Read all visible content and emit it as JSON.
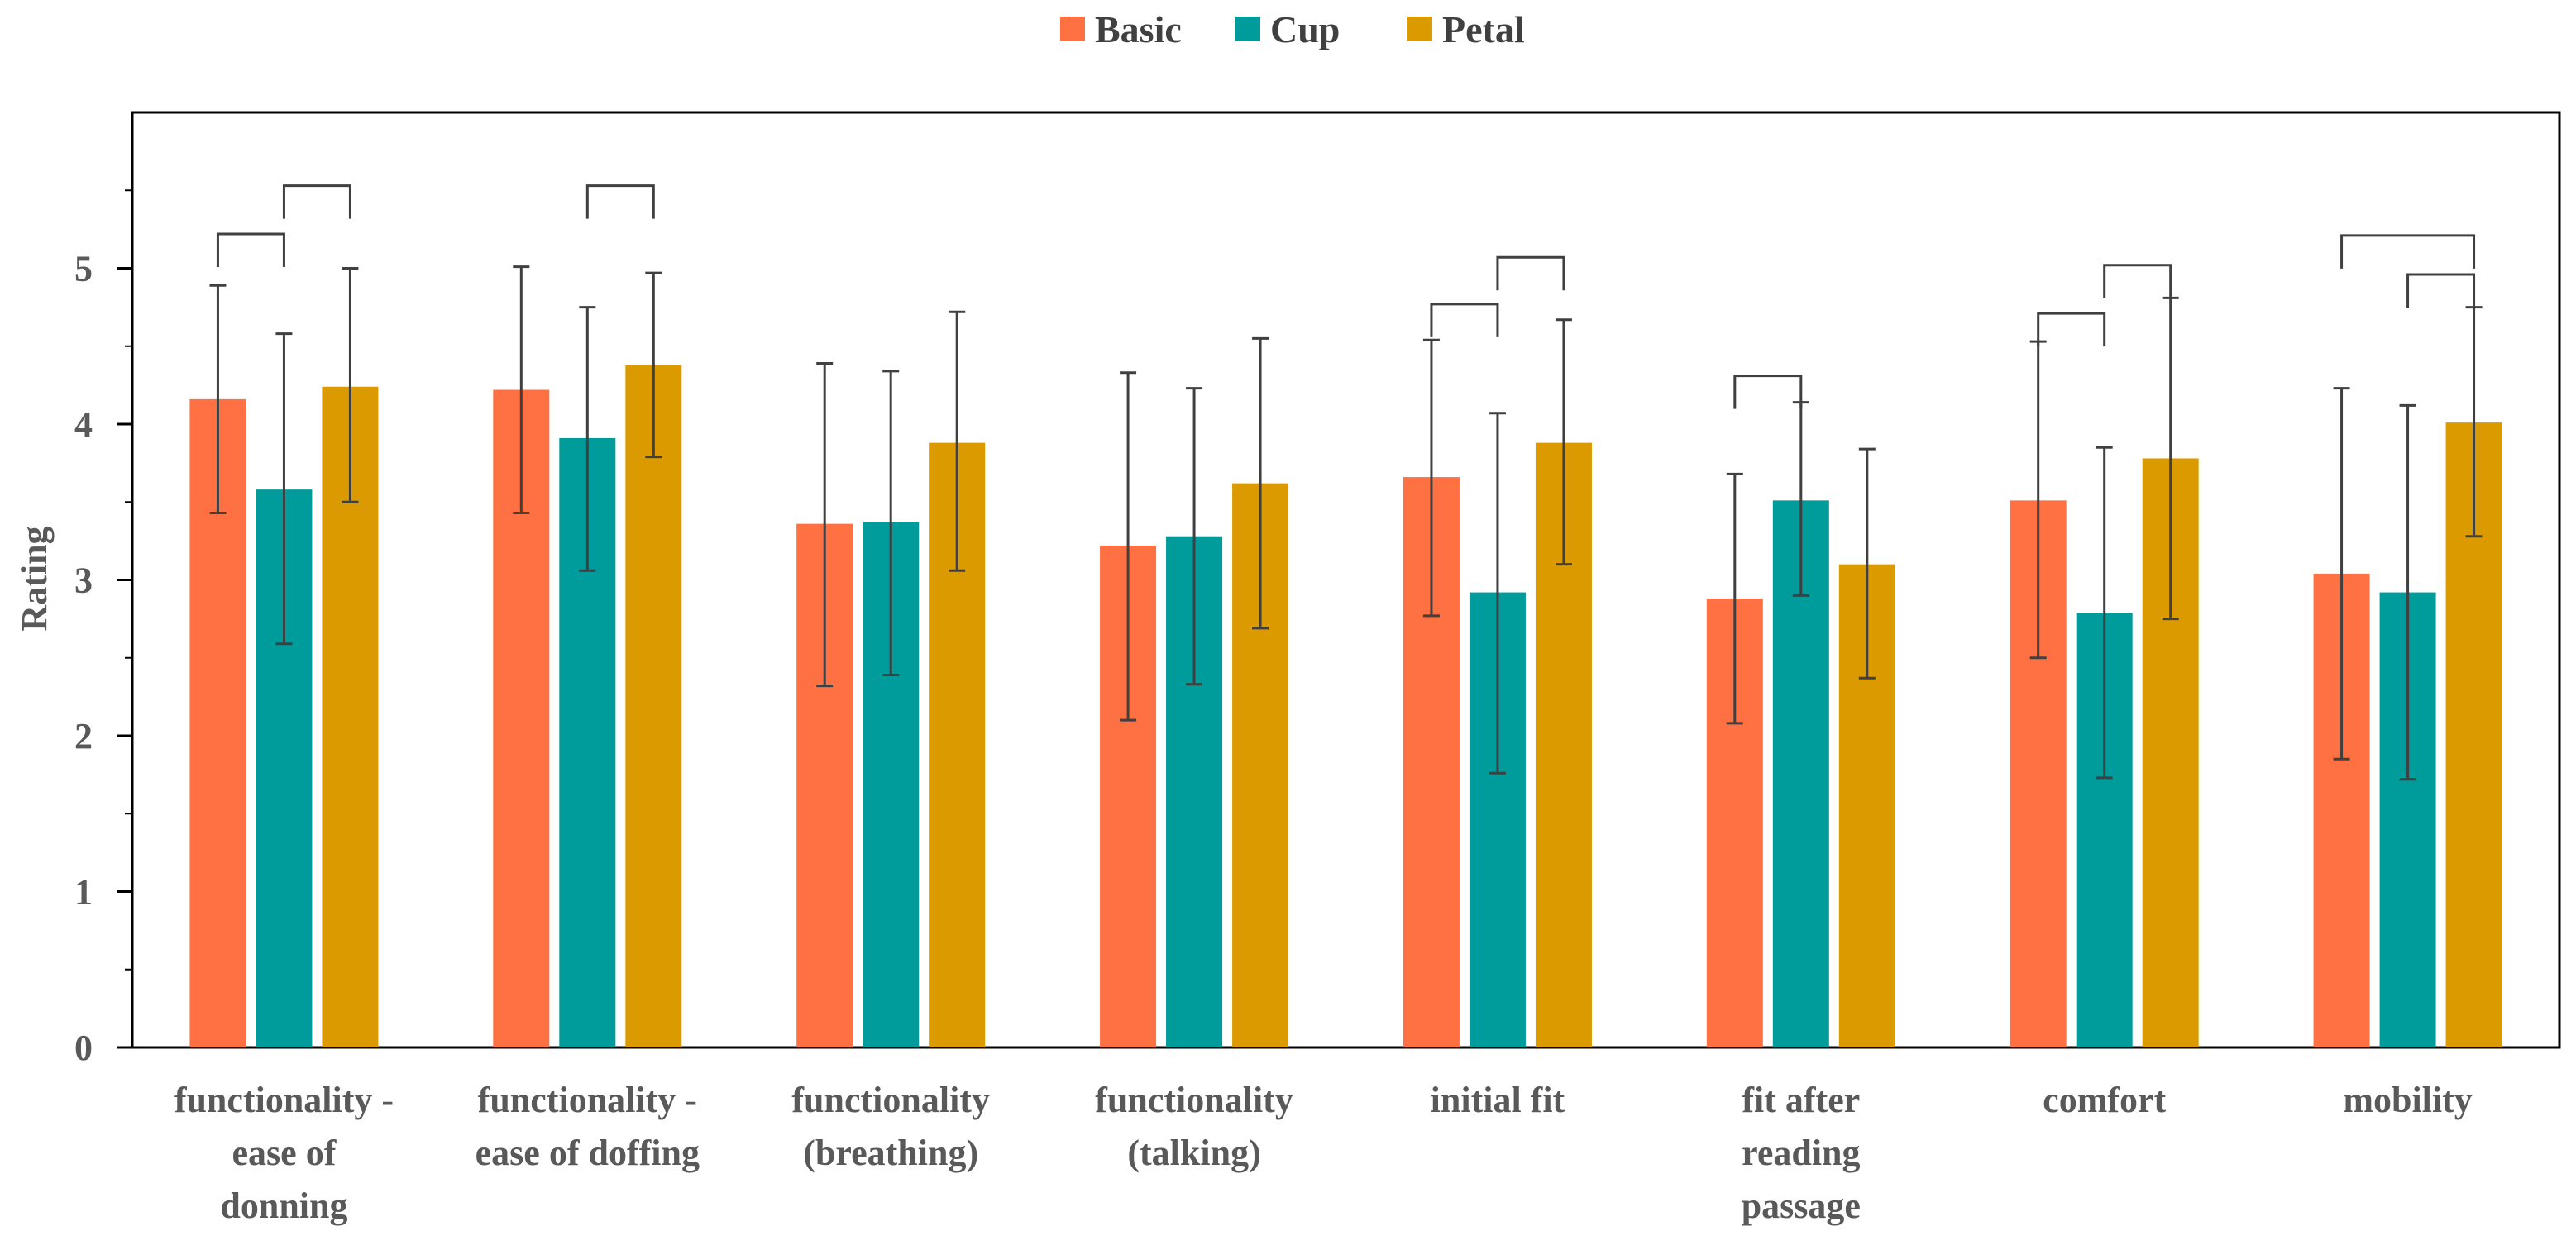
{
  "chart_data": {
    "type": "bar",
    "title": "",
    "xlabel": "",
    "ylabel": "Rating",
    "ylim": [
      0,
      6
    ],
    "yticks": [
      0,
      1,
      2,
      3,
      4,
      5
    ],
    "grid": false,
    "legend_position": "top-center",
    "categories": [
      [
        "functionality -",
        "ease of",
        "donning"
      ],
      [
        "functionality -",
        "ease of doffing"
      ],
      [
        "functionality",
        "(breathing)"
      ],
      [
        "functionality",
        "(talking)"
      ],
      [
        "initial fit"
      ],
      [
        "fit after",
        "reading",
        "passage"
      ],
      [
        "comfort"
      ],
      [
        "mobility"
      ]
    ],
    "series": [
      {
        "name": "Basic",
        "color": "#FF7043",
        "values": [
          4.16,
          4.22,
          3.36,
          3.22,
          3.66,
          2.88,
          3.51,
          3.04
        ],
        "err_low": [
          3.43,
          3.43,
          2.32,
          2.1,
          2.77,
          2.08,
          2.5,
          1.85
        ],
        "err_high": [
          4.89,
          5.01,
          4.39,
          4.33,
          4.54,
          3.68,
          4.53,
          4.23
        ]
      },
      {
        "name": "Cup",
        "color": "#009B9B",
        "values": [
          3.58,
          3.91,
          3.37,
          3.28,
          2.92,
          3.51,
          2.79,
          2.92
        ],
        "err_low": [
          2.59,
          3.06,
          2.39,
          2.33,
          1.76,
          2.9,
          1.73,
          1.72
        ],
        "err_high": [
          4.58,
          4.75,
          4.34,
          4.23,
          4.07,
          4.14,
          3.85,
          4.12
        ]
      },
      {
        "name": "Petal",
        "color": "#DA9A00",
        "values": [
          4.24,
          4.38,
          3.88,
          3.62,
          3.88,
          3.1,
          3.78,
          4.01
        ],
        "err_low": [
          3.5,
          3.79,
          3.06,
          2.69,
          3.1,
          2.37,
          2.75,
          3.28
        ],
        "err_high": [
          5.0,
          4.97,
          4.72,
          4.55,
          4.67,
          3.84,
          4.81,
          4.75
        ]
      }
    ],
    "significance_brackets": [
      {
        "category": 0,
        "from": 0,
        "to": 1,
        "level": 5.22
      },
      {
        "category": 0,
        "from": 1,
        "to": 2,
        "level": 5.53
      },
      {
        "category": 1,
        "from": 1,
        "to": 2,
        "level": 5.53
      },
      {
        "category": 4,
        "from": 0,
        "to": 1,
        "level": 4.77
      },
      {
        "category": 4,
        "from": 1,
        "to": 2,
        "level": 5.07
      },
      {
        "category": 5,
        "from": 0,
        "to": 1,
        "level": 4.31
      },
      {
        "category": 6,
        "from": 0,
        "to": 1,
        "level": 4.71
      },
      {
        "category": 6,
        "from": 1,
        "to": 2,
        "level": 5.02
      },
      {
        "category": 7,
        "from": 0,
        "to": 2,
        "level": 5.21
      },
      {
        "category": 7,
        "from": 1,
        "to": 2,
        "level": 4.96
      }
    ]
  }
}
